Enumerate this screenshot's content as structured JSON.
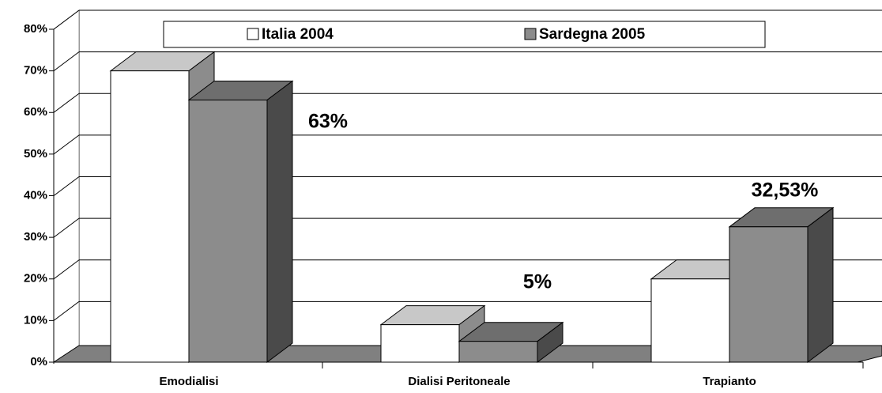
{
  "chart_data": {
    "type": "bar3d",
    "categories": [
      "Emodialisi",
      "Dialisi Peritoneale",
      "Trapianto"
    ],
    "series": [
      {
        "name": "Italia 2004",
        "color": "#ffffff",
        "values": [
          70,
          9,
          20
        ]
      },
      {
        "name": "Sardegna 2005",
        "color": "#8c8c8c",
        "values": [
          63,
          5,
          32.53
        ],
        "value_labels": [
          "63%",
          "5%",
          "32,53%"
        ]
      }
    ],
    "ylim": [
      0,
      80
    ],
    "yticks": [
      {
        "value": 0,
        "label": "0%"
      },
      {
        "value": 10,
        "label": "10%"
      },
      {
        "value": 20,
        "label": "20%"
      },
      {
        "value": 30,
        "label": "30%"
      },
      {
        "value": 40,
        "label": "40%"
      },
      {
        "value": 50,
        "label": "50%"
      },
      {
        "value": 60,
        "label": "60%"
      },
      {
        "value": 70,
        "label": "70%"
      },
      {
        "value": 80,
        "label": "80%"
      }
    ],
    "grid": true
  }
}
